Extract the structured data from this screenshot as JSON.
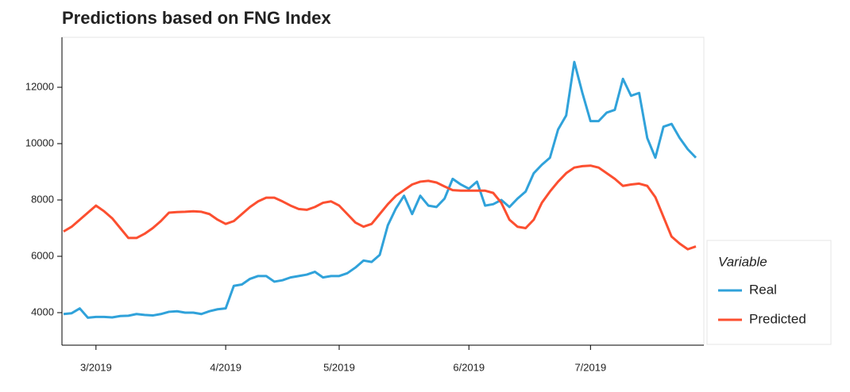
{
  "chart_data": {
    "type": "line",
    "title": "Predictions based on FNG Index",
    "categories": [
      null,
      null,
      null,
      null,
      "3/2019",
      null,
      null,
      null,
      null,
      null,
      null,
      null,
      null,
      null,
      null,
      null,
      null,
      null,
      null,
      null,
      "4/2019",
      null,
      null,
      null,
      null,
      null,
      null,
      null,
      null,
      null,
      null,
      null,
      null,
      null,
      "5/2019",
      null,
      null,
      null,
      null,
      null,
      null,
      null,
      null,
      null,
      null,
      null,
      null,
      null,
      null,
      null,
      "6/2019",
      null,
      null,
      null,
      null,
      null,
      null,
      null,
      null,
      null,
      null,
      null,
      null,
      null,
      null,
      "7/2019",
      null,
      null,
      null,
      null,
      null,
      null,
      null,
      null,
      null,
      null,
      null,
      null,
      null
    ],
    "series": [
      {
        "name": "Real",
        "color": "#30a2da",
        "values": [
          3950,
          3980,
          4150,
          3820,
          3850,
          3850,
          3830,
          3880,
          3890,
          3950,
          3920,
          3900,
          3950,
          4030,
          4050,
          4000,
          4000,
          3950,
          4050,
          4120,
          4150,
          4950,
          5000,
          5200,
          5300,
          5300,
          5100,
          5150,
          5250,
          5300,
          5350,
          5450,
          5250,
          5300,
          5300,
          5400,
          5600,
          5850,
          5800,
          6050,
          7100,
          7700,
          8150,
          7500,
          8150,
          7800,
          7750,
          8050,
          8750,
          8550,
          8400,
          8650,
          7800,
          7850,
          8000,
          7750,
          8050,
          8300,
          8950,
          9250,
          9500,
          10500,
          11000,
          12900,
          11800,
          10800,
          10800,
          11100,
          11200,
          12300,
          11700,
          11800,
          10200,
          9500,
          10600,
          10700,
          10200,
          9800,
          9500
        ]
      },
      {
        "name": "Predicted",
        "color": "#fc4f30",
        "values": [
          6880,
          7050,
          7300,
          7550,
          7800,
          7600,
          7350,
          7000,
          6650,
          6650,
          6800,
          7000,
          7250,
          7550,
          7570,
          7580,
          7600,
          7580,
          7500,
          7300,
          7150,
          7250,
          7500,
          7750,
          7950,
          8080,
          8080,
          7950,
          7800,
          7680,
          7650,
          7750,
          7900,
          7950,
          7800,
          7500,
          7200,
          7050,
          7150,
          7500,
          7850,
          8150,
          8350,
          8550,
          8650,
          8680,
          8620,
          8480,
          8350,
          8330,
          8330,
          8330,
          8330,
          8250,
          7900,
          7300,
          7050,
          7000,
          7300,
          7900,
          8300,
          8650,
          8950,
          9150,
          9200,
          9220,
          9150,
          8950,
          8750,
          8500,
          8550,
          8580,
          8500,
          8100,
          7400,
          6700,
          6450,
          6250,
          6350
        ]
      }
    ],
    "ylim": [
      2845,
      13775
    ],
    "yticks": [
      4000,
      6000,
      8000,
      10000,
      12000
    ],
    "legend_title": "Variable",
    "legend": "right"
  }
}
